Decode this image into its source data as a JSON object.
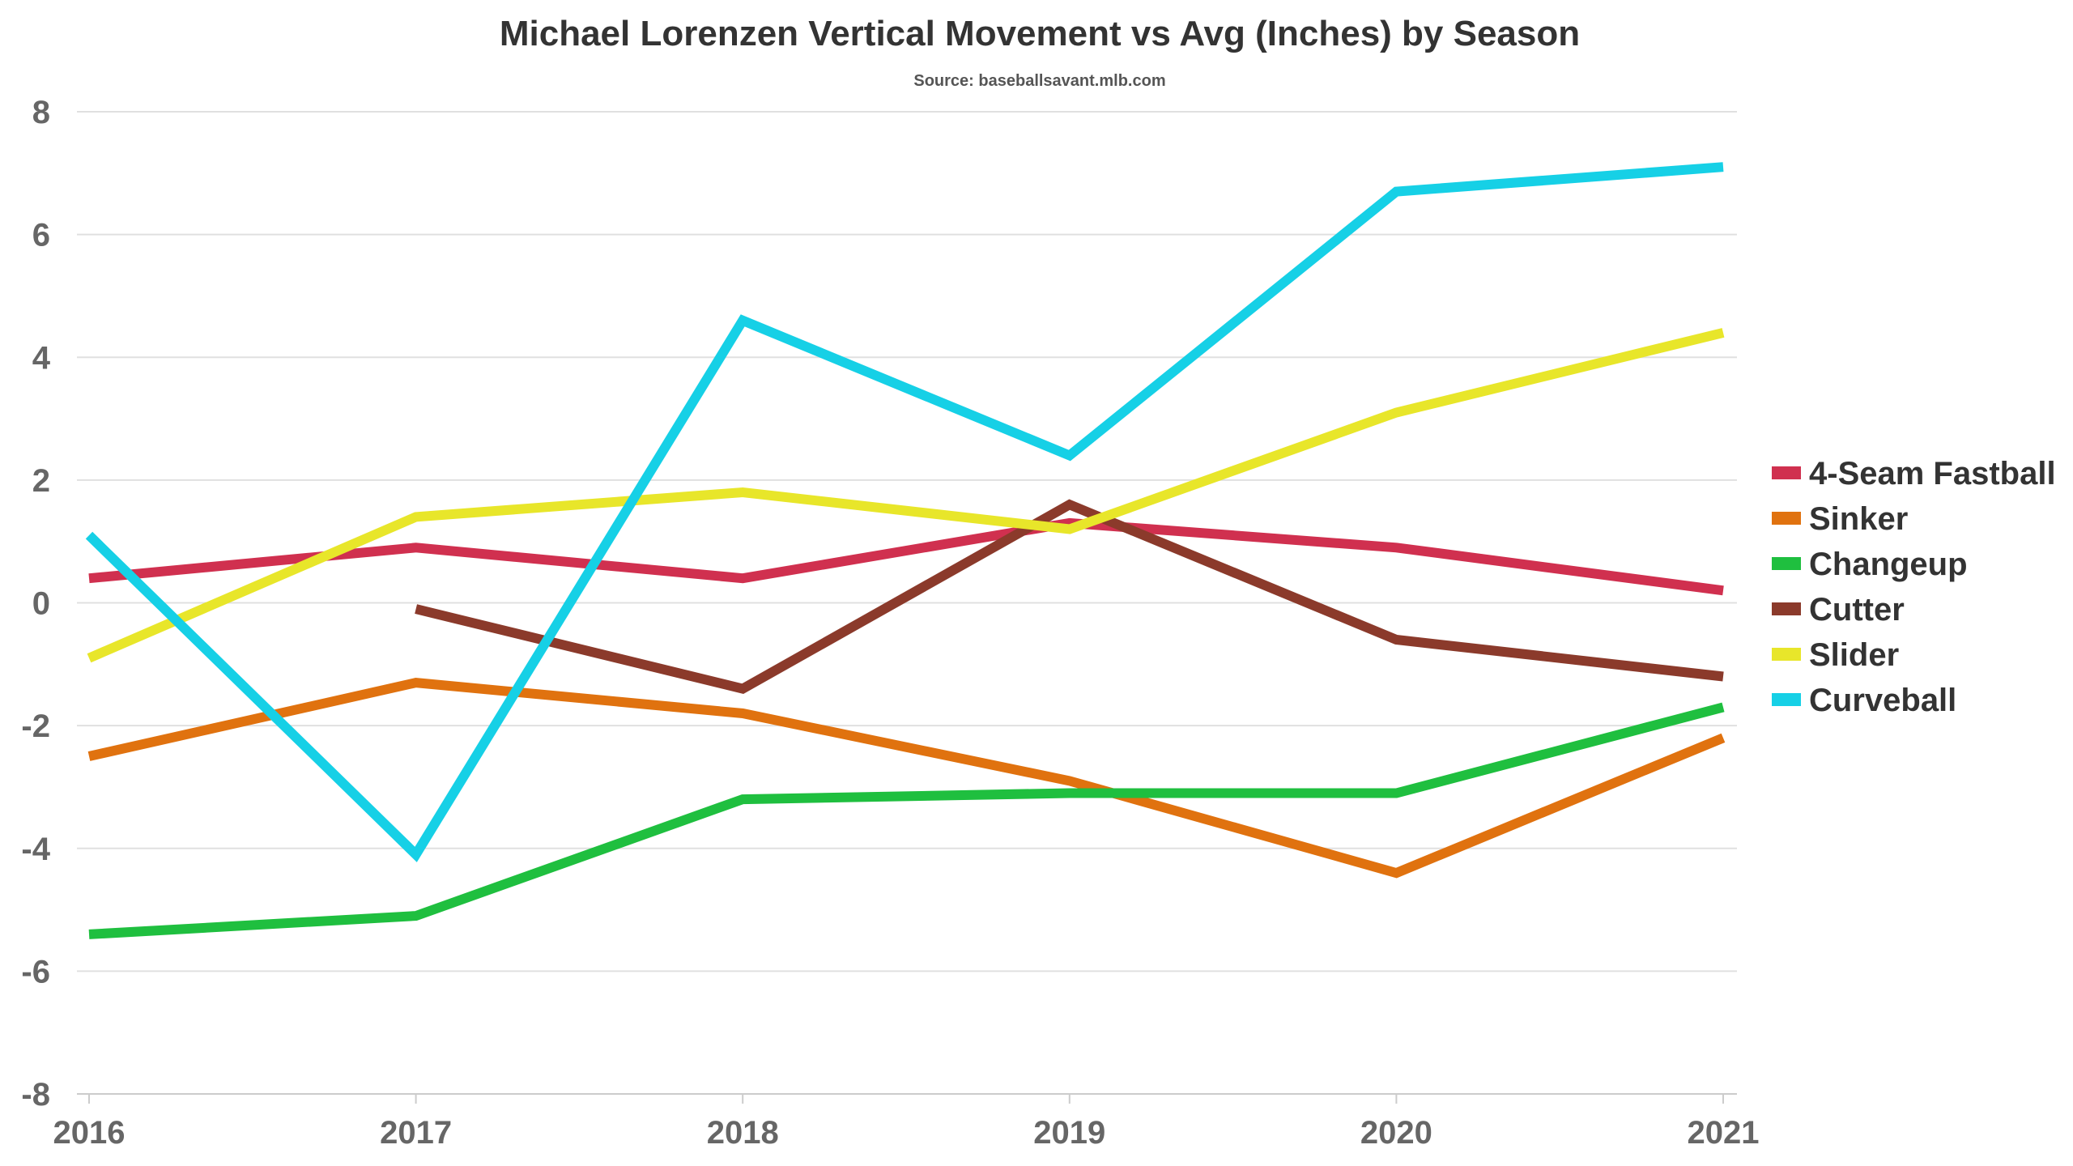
{
  "chart_data": {
    "type": "line",
    "title": "Michael Lorenzen Vertical Movement vs Avg (Inches) by Season",
    "subtitle": "Source: baseballsavant.mlb.com",
    "xlabel": "",
    "ylabel": "",
    "categories": [
      "2016",
      "2017",
      "2018",
      "2019",
      "2020",
      "2021"
    ],
    "ylim": [
      -8,
      8
    ],
    "yticks": [
      8,
      6,
      4,
      2,
      0,
      -2,
      -4,
      -6,
      -8
    ],
    "grid": true,
    "legend_position": "right",
    "series": [
      {
        "name": "4-Seam Fastball",
        "color": "#d0304f",
        "values": [
          0.4,
          0.9,
          0.4,
          1.3,
          0.9,
          0.2
        ]
      },
      {
        "name": "Sinker",
        "color": "#e0720f",
        "values": [
          -2.5,
          -1.3,
          -1.8,
          -2.9,
          -4.4,
          -2.2
        ]
      },
      {
        "name": "Changeup",
        "color": "#1fbf3f",
        "values": [
          -5.4,
          -5.1,
          -3.2,
          -3.1,
          -3.1,
          -1.7
        ]
      },
      {
        "name": "Cutter",
        "color": "#8b3a2b",
        "values": [
          null,
          -0.1,
          -1.4,
          1.6,
          -0.6,
          -1.2
        ]
      },
      {
        "name": "Slider",
        "color": "#e8e62a",
        "values": [
          -0.9,
          1.4,
          1.8,
          1.2,
          3.1,
          4.4
        ]
      },
      {
        "name": "Curveball",
        "color": "#16d0e6",
        "values": [
          1.1,
          -4.1,
          4.6,
          2.4,
          6.7,
          7.1
        ]
      }
    ]
  }
}
